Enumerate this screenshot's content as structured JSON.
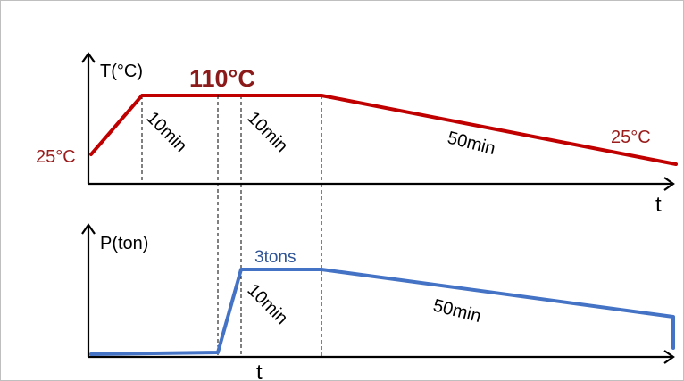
{
  "temperature": {
    "axis_label": "T(°C)",
    "x_axis_label": "t",
    "start_label": "25°C",
    "hold_label": "110°C",
    "end_label": "25°C",
    "ramp_color": "#c00000",
    "durations": [
      "10min",
      "10min",
      "50min"
    ]
  },
  "pressure": {
    "axis_label": "P(ton)",
    "x_axis_label": "t",
    "peak_label": "3tons",
    "line_color": "#4472c4",
    "durations": [
      "10min",
      "50min"
    ]
  }
}
